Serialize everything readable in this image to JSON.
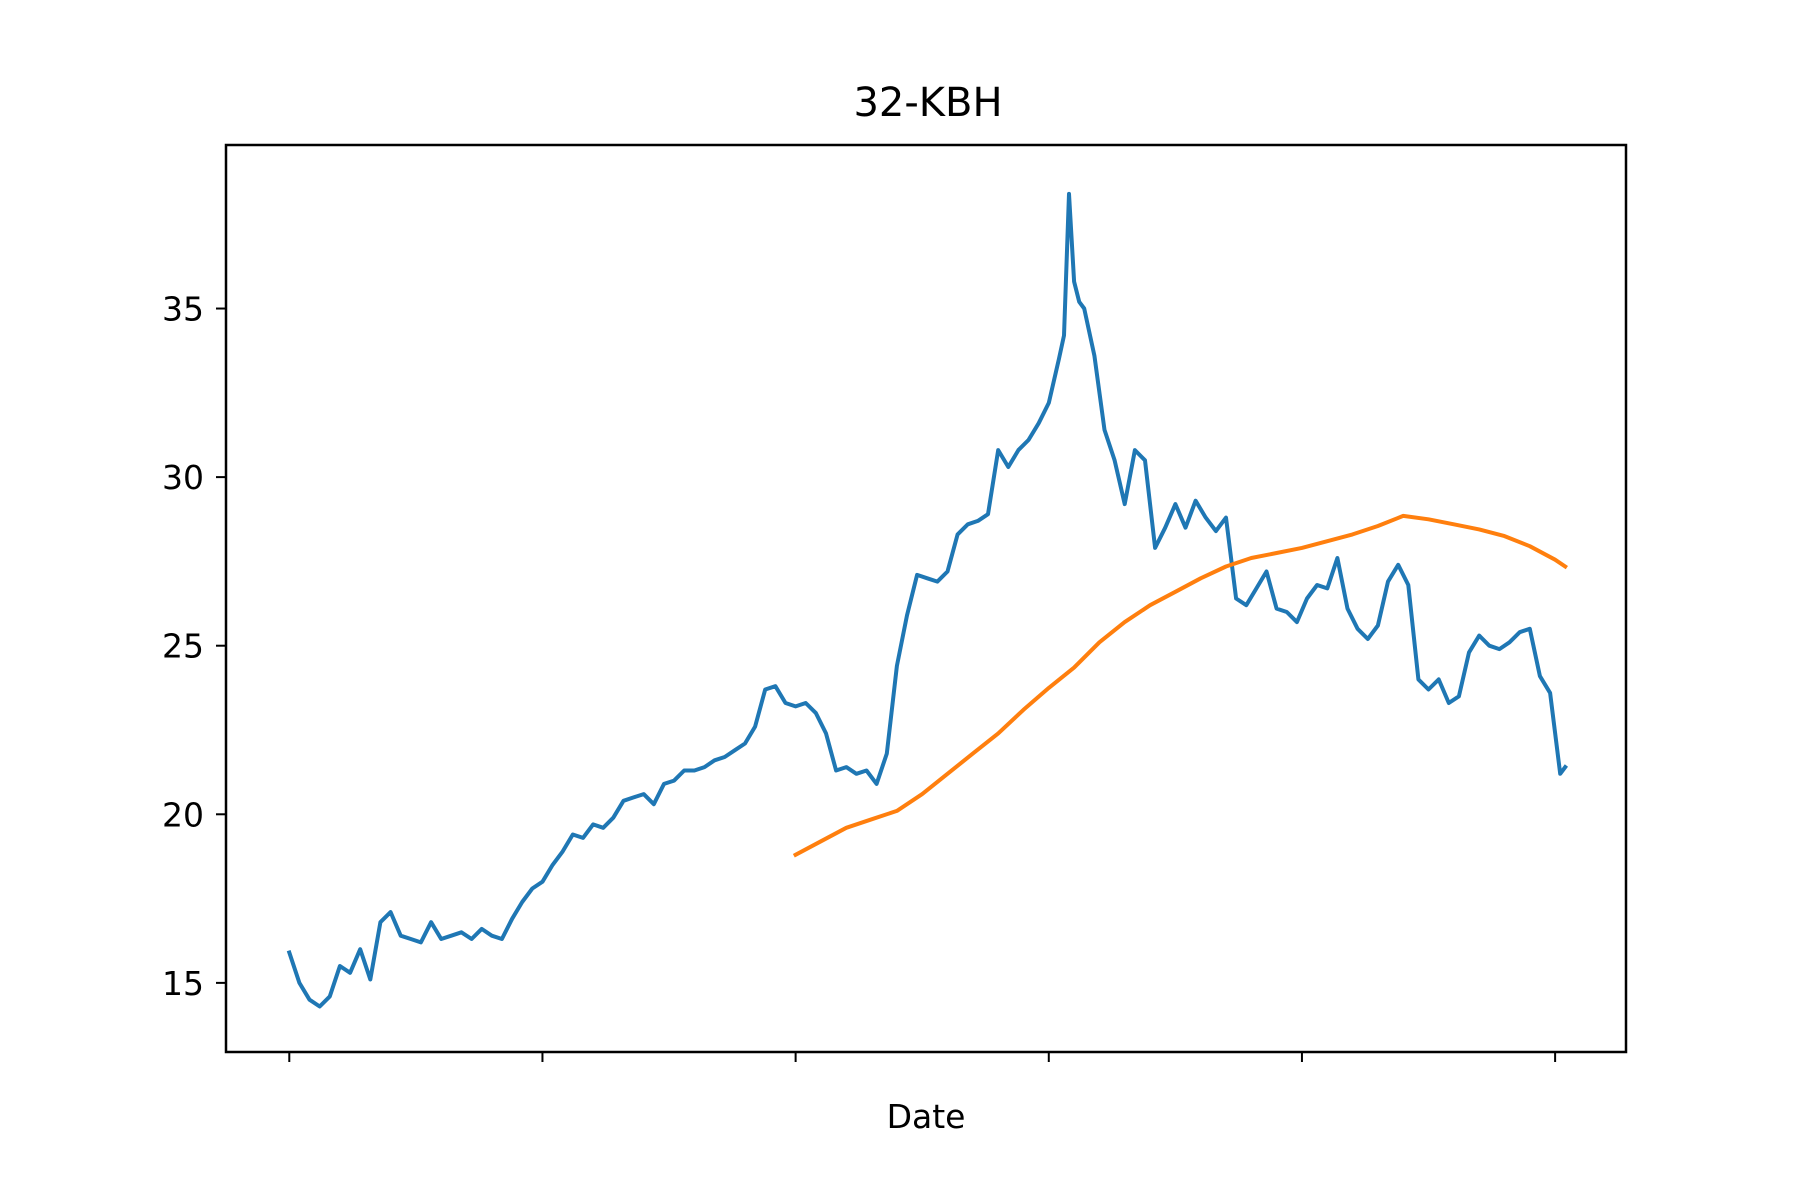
{
  "chart_data": {
    "type": "line",
    "title": "32-KBH",
    "xlabel": "Date",
    "ylabel": "",
    "xlim": [
      -25,
      528
    ],
    "ylim": [
      12.95,
      39.85
    ],
    "x_ticks": [
      0,
      100,
      200,
      300,
      400,
      500
    ],
    "y_ticks": [
      15,
      20,
      25,
      30,
      35
    ],
    "grid": false,
    "legend": "none",
    "series": [
      {
        "color": "#1f77b4",
        "x": [
          0,
          4,
          8,
          12,
          16,
          20,
          24,
          28,
          32,
          36,
          40,
          44,
          48,
          52,
          56,
          60,
          64,
          68,
          72,
          76,
          80,
          84,
          88,
          92,
          96,
          100,
          104,
          108,
          112,
          116,
          120,
          124,
          128,
          132,
          136,
          140,
          144,
          148,
          152,
          156,
          160,
          164,
          168,
          172,
          176,
          180,
          184,
          188,
          192,
          196,
          200,
          204,
          208,
          212,
          216,
          220,
          224,
          228,
          232,
          236,
          240,
          244,
          248,
          252,
          256,
          260,
          264,
          268,
          272,
          276,
          280,
          284,
          288,
          292,
          296,
          300,
          304,
          306,
          308,
          310,
          312,
          314,
          318,
          322,
          326,
          330,
          334,
          338,
          342,
          346,
          350,
          354,
          358,
          362,
          366,
          370,
          374,
          378,
          382,
          386,
          390,
          394,
          398,
          402,
          406,
          410,
          414,
          418,
          422,
          426,
          430,
          434,
          438,
          442,
          446,
          450,
          454,
          458,
          462,
          466,
          470,
          474,
          478,
          482,
          486,
          490,
          494,
          498,
          502,
          504
        ],
        "y": [
          15.9,
          15.0,
          14.5,
          14.3,
          14.6,
          15.5,
          15.3,
          16.0,
          15.1,
          16.8,
          17.1,
          16.4,
          16.3,
          16.2,
          16.8,
          16.3,
          16.4,
          16.5,
          16.3,
          16.6,
          16.4,
          16.3,
          16.9,
          17.4,
          17.8,
          18.0,
          18.5,
          18.9,
          19.4,
          19.3,
          19.7,
          19.6,
          19.9,
          20.4,
          20.5,
          20.6,
          20.3,
          20.9,
          21.0,
          21.3,
          21.3,
          21.4,
          21.6,
          21.7,
          21.9,
          22.1,
          22.6,
          23.7,
          23.8,
          23.3,
          23.2,
          23.3,
          23.0,
          22.4,
          21.3,
          21.4,
          21.2,
          21.3,
          20.9,
          21.8,
          24.4,
          25.9,
          27.1,
          27.0,
          26.9,
          27.2,
          28.3,
          28.6,
          28.7,
          28.9,
          30.8,
          30.3,
          30.8,
          31.1,
          31.6,
          32.2,
          33.5,
          34.2,
          38.4,
          35.8,
          35.2,
          35.0,
          33.6,
          31.4,
          30.5,
          29.2,
          30.8,
          30.5,
          27.9,
          28.5,
          29.2,
          28.5,
          29.3,
          28.8,
          28.4,
          28.8,
          26.4,
          26.2,
          26.7,
          27.2,
          26.1,
          26.0,
          25.7,
          26.4,
          26.8,
          26.7,
          27.6,
          26.1,
          25.5,
          25.2,
          25.6,
          26.9,
          27.4,
          26.8,
          24.0,
          23.7,
          24.0,
          23.3,
          23.5,
          24.8,
          25.3,
          25.0,
          24.9,
          25.1,
          25.4,
          25.5,
          24.1,
          23.6,
          21.2,
          21.4
        ]
      },
      {
        "color": "#ff7f0e",
        "x": [
          200,
          210,
          220,
          230,
          240,
          250,
          260,
          270,
          280,
          290,
          300,
          310,
          320,
          330,
          340,
          350,
          360,
          370,
          380,
          390,
          400,
          410,
          420,
          430,
          440,
          450,
          460,
          470,
          480,
          490,
          500,
          504
        ],
        "y": [
          18.8,
          19.2,
          19.6,
          19.85,
          20.1,
          20.6,
          21.2,
          21.8,
          22.4,
          23.1,
          23.75,
          24.35,
          25.1,
          25.7,
          26.2,
          26.6,
          27.0,
          27.35,
          27.6,
          27.75,
          27.9,
          28.1,
          28.3,
          28.55,
          28.85,
          28.75,
          28.6,
          28.45,
          28.25,
          27.95,
          27.55,
          27.35
        ]
      }
    ]
  }
}
